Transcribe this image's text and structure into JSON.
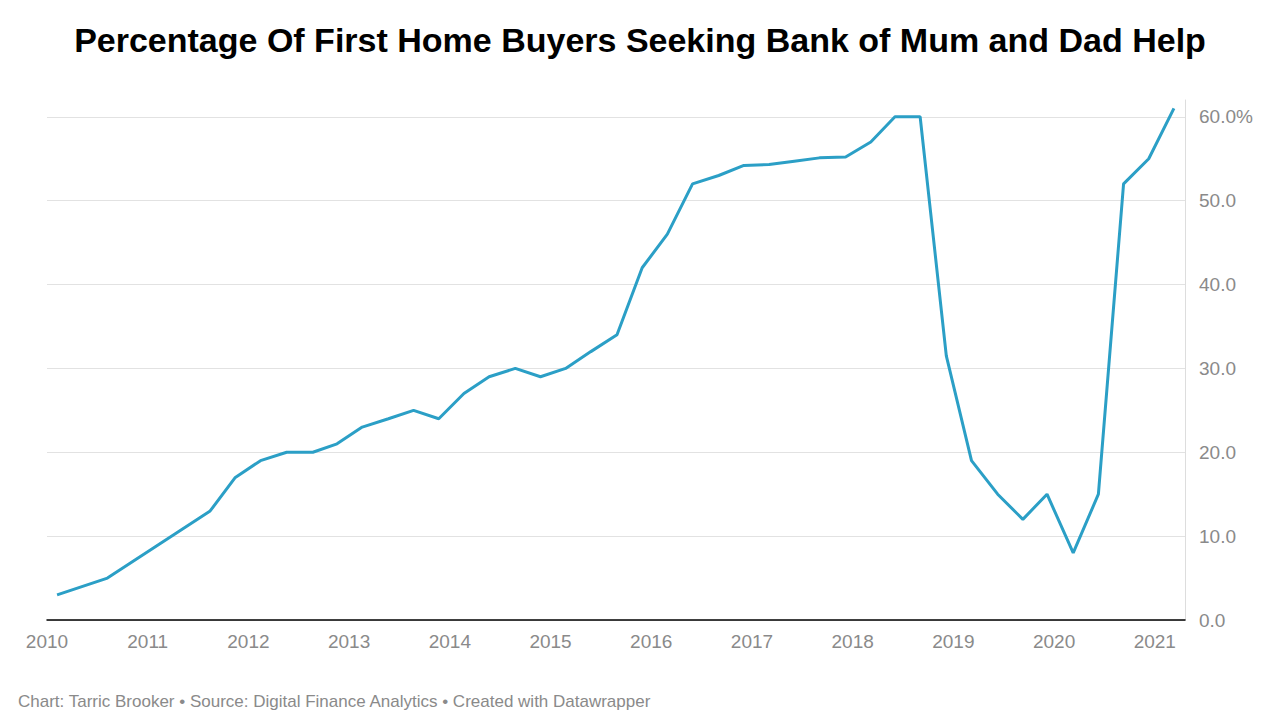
{
  "chart_data": {
    "type": "line",
    "title": "Percentage Of First Home Buyers Seeking Bank of Mum and Dad Help",
    "source": "Chart: Tarric Brooker • Source: Digital Finance Analytics • Created with Datawrapper",
    "x": [
      2010.1,
      2010.6,
      2011.62,
      2011.87,
      2012.12,
      2012.38,
      2012.64,
      2012.88,
      2013.13,
      2013.39,
      2013.64,
      2013.89,
      2014.14,
      2014.39,
      2014.65,
      2014.9,
      2015.15,
      2015.4,
      2015.66,
      2015.91,
      2016.16,
      2016.41,
      2016.67,
      2016.92,
      2017.17,
      2017.42,
      2017.67,
      2017.93,
      2018.18,
      2018.42,
      2018.67,
      2018.93,
      2019.18,
      2019.44,
      2019.69,
      2019.93,
      2020.19,
      2020.44,
      2020.69,
      2020.94,
      2021.19
    ],
    "values": [
      3,
      5,
      13,
      17,
      19,
      20,
      20,
      21,
      23,
      24,
      25,
      24,
      27,
      29,
      30,
      29,
      30,
      32,
      34,
      42,
      46,
      52,
      53,
      54.2,
      54.3,
      54.7,
      55.1,
      55.2,
      57,
      60,
      60,
      31.5,
      19,
      15,
      12,
      15,
      8,
      15,
      52,
      55,
      61
    ],
    "color": "#2b9fc6",
    "xlim": [
      2010,
      2021.3
    ],
    "xticks": [
      2010,
      2011,
      2012,
      2013,
      2014,
      2015,
      2016,
      2017,
      2018,
      2019,
      2020,
      2021
    ],
    "ylim": [
      0,
      62
    ],
    "yticks": [
      {
        "value": 0,
        "label": "0.0"
      },
      {
        "value": 10,
        "label": "10.0"
      },
      {
        "value": 20,
        "label": "20.0"
      },
      {
        "value": 30,
        "label": "30.0"
      },
      {
        "value": 40,
        "label": "40.0"
      },
      {
        "value": 50,
        "label": "50.0"
      },
      {
        "value": 60,
        "label": "60.0%"
      }
    ],
    "grid": true
  }
}
